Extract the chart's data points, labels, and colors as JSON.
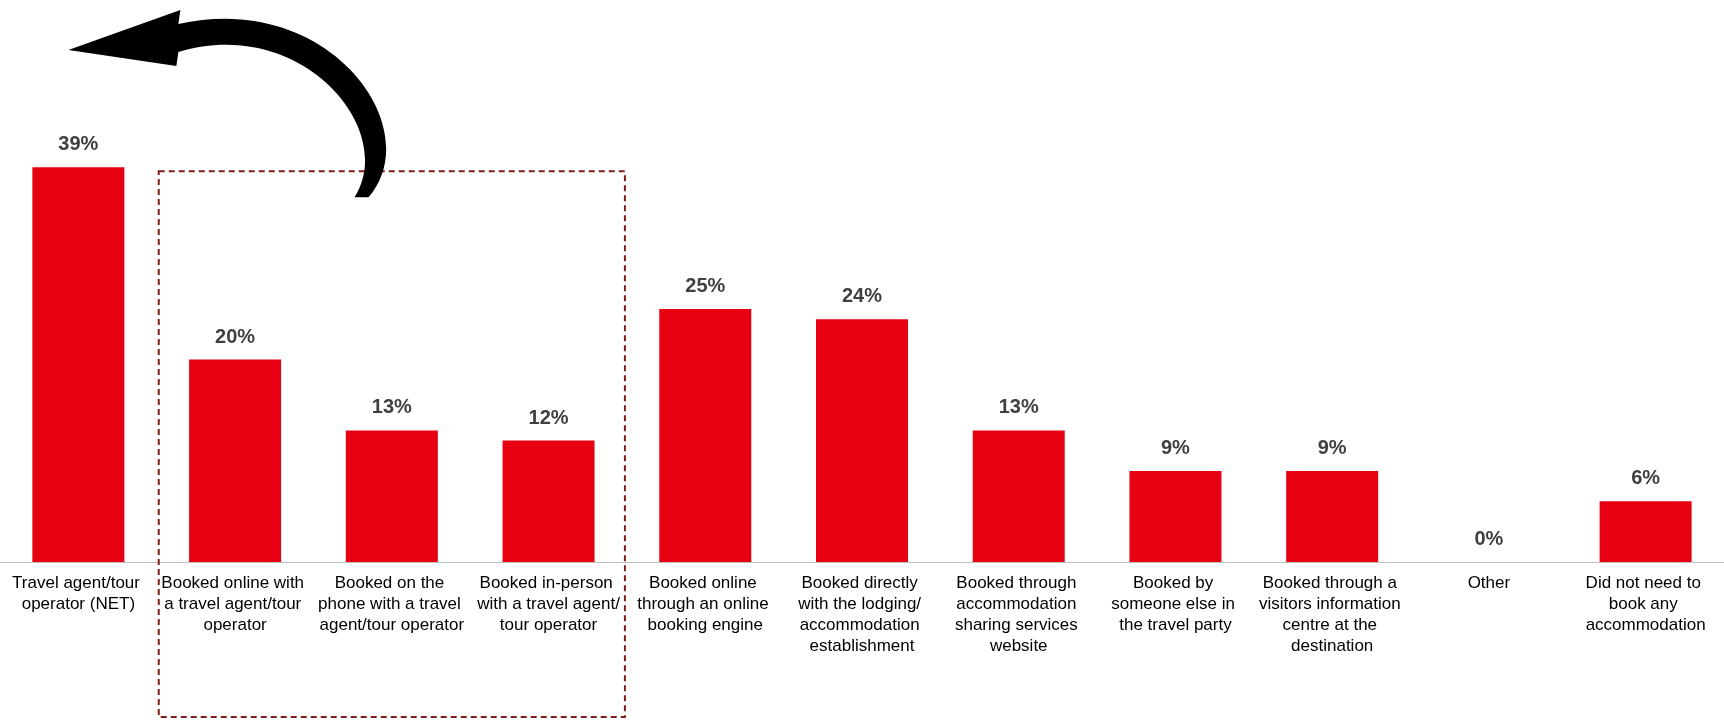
{
  "chart_data": {
    "type": "bar",
    "categories": [
      "Travel agent/tour operator (NET)",
      "Booked online with a travel agent/tour operator",
      "Booked on the phone with a travel agent/tour operator",
      "Booked in-person with a travel agent/tour operator",
      "Booked online through an online booking engine",
      "Booked directly with the lodging/ accommodation establishment",
      "Booked through accommodation sharing services website",
      "Booked by someone else in the travel party",
      "Booked through a visitors information centre at the destination",
      "Other",
      "Did not need to book any accommodation"
    ],
    "values": [
      39,
      20,
      13,
      12,
      25,
      24,
      13,
      9,
      9,
      0,
      6
    ],
    "value_labels": [
      "39%",
      "20%",
      "13%",
      "12%",
      "25%",
      "24%",
      "13%",
      "9%",
      "9%",
      "0%",
      "6%"
    ],
    "color": "#e60012"
  }
}
